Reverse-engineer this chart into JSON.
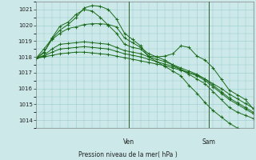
{
  "background_color": "#cce8e8",
  "grid_color": "#99cccc",
  "line_color": "#1a6b1a",
  "marker_color": "#1a6b1a",
  "title": "Pression niveau de la mer( hPa )",
  "ylabel_ticks": [
    1014,
    1015,
    1016,
    1017,
    1018,
    1019,
    1020,
    1021
  ],
  "lines": [
    [
      1017.9,
      1018.3,
      1019.1,
      1019.5,
      1019.8,
      1019.9,
      1020.05,
      1020.1,
      1020.1,
      1020.05,
      1019.9,
      1019.2,
      1018.9,
      1018.6,
      1018.2,
      1018.0,
      1017.8,
      1017.5,
      1017.2,
      1016.9,
      1016.6,
      1016.3,
      1015.8,
      1015.3,
      1014.8,
      1014.5,
      1014.3,
      1014.1
    ],
    [
      1017.9,
      1018.5,
      1019.15,
      1019.7,
      1020.05,
      1020.5,
      1021.1,
      1021.25,
      1021.2,
      1021.0,
      1020.4,
      1019.5,
      1019.1,
      1018.7,
      1018.0,
      1017.7,
      1017.4,
      1017.1,
      1016.8,
      1016.2,
      1015.7,
      1015.1,
      1014.6,
      1014.2,
      1013.8,
      1013.5,
      1013.2,
      1013.0
    ],
    [
      1017.9,
      1018.1,
      1018.5,
      1018.8,
      1018.85,
      1018.9,
      1018.95,
      1018.9,
      1018.85,
      1018.8,
      1018.6,
      1018.4,
      1018.3,
      1018.2,
      1018.0,
      1017.85,
      1017.7,
      1017.5,
      1017.3,
      1017.1,
      1016.9,
      1016.6,
      1016.2,
      1015.8,
      1015.4,
      1015.1,
      1014.8,
      1014.5
    ],
    [
      1017.9,
      1018.05,
      1018.3,
      1018.5,
      1018.55,
      1018.6,
      1018.65,
      1018.6,
      1018.55,
      1018.5,
      1018.35,
      1018.2,
      1018.1,
      1018.0,
      1017.85,
      1017.7,
      1017.55,
      1017.4,
      1017.2,
      1017.0,
      1016.8,
      1016.5,
      1016.1,
      1015.7,
      1015.3,
      1015.0,
      1014.7,
      1014.4
    ],
    [
      1017.9,
      1018.0,
      1018.1,
      1018.2,
      1018.25,
      1018.3,
      1018.3,
      1018.25,
      1018.2,
      1018.15,
      1018.05,
      1017.95,
      1017.85,
      1017.75,
      1017.65,
      1017.55,
      1017.45,
      1017.3,
      1017.15,
      1017.0,
      1016.85,
      1016.6,
      1016.3,
      1016.0,
      1015.65,
      1015.35,
      1015.05,
      1014.75
    ],
    [
      1017.9,
      1018.25,
      1019.2,
      1019.95,
      1020.2,
      1020.7,
      1021.0,
      1020.9,
      1020.5,
      1020.0,
      1019.5,
      1018.8,
      1018.6,
      1018.5,
      1018.05,
      1018.0,
      1018.05,
      1018.2,
      1018.7,
      1018.6,
      1018.05,
      1017.8,
      1017.3,
      1016.6,
      1015.9,
      1015.6,
      1015.3,
      1014.7
    ]
  ],
  "n_points": 28,
  "xlim": [
    0,
    27
  ],
  "ylim": [
    1013.5,
    1021.5
  ],
  "ven_idx": 11.5,
  "sam_idx": 21.5
}
